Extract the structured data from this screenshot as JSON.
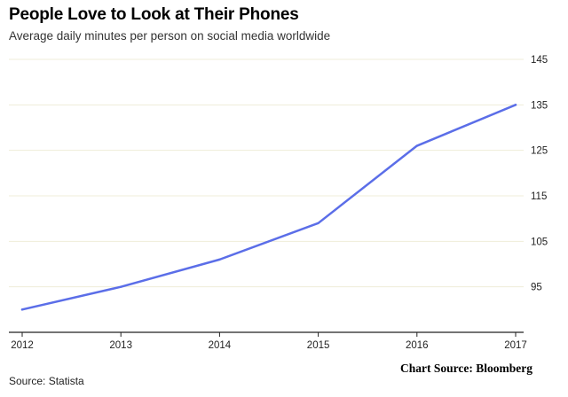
{
  "chart_data": {
    "type": "line",
    "title": "People Love to Look at Their Phones",
    "subtitle": "Average daily minutes per person on social media worldwide",
    "xlabel": "",
    "ylabel": "",
    "x": [
      "2012",
      "2013",
      "2014",
      "2015",
      "2016",
      "2017"
    ],
    "series": [
      {
        "values": [
          90,
          95,
          101,
          109,
          126,
          135
        ]
      }
    ],
    "ylim": [
      85,
      145
    ],
    "yticks": [
      95,
      105,
      115,
      125,
      135,
      145
    ],
    "grid": true,
    "line_color": "#5b6ee8",
    "grid_color": "#efedd8"
  },
  "footer": {
    "source": "Source: Statista",
    "credit": "Chart Source: Bloomberg"
  }
}
